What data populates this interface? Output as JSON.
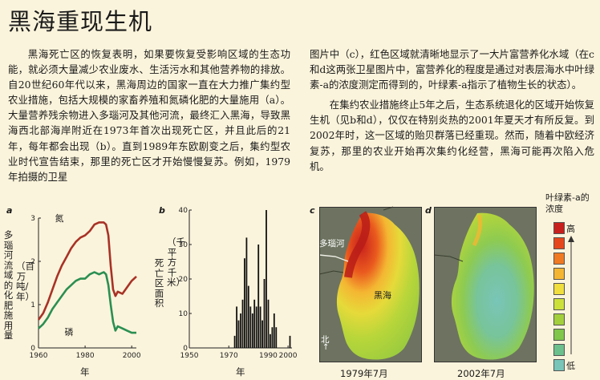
{
  "page": {
    "title": "黑海重现生机",
    "col1_p1": "黑海死亡区的恢复表明，如果要恢复受影响区域的生态功能，就必须大量减少农业废水、生活污水和其他营养物的排放。自20世纪60年代以来，黑海周边的国家一直在大力推广集约型农业措施，包括大规模的家畜养殖和氮磷化肥的大量施用（a）。大量营养残余物进入多瑙河及其他河流，最终汇入黑海，导致黑海西北部海岸附近在1973年首次出现死亡区，并且此后的21年，每年都会出现（b）。直到1989年东欧剧变之后，集约型农业时代宣告结束，那里的死亡区才开始慢慢复苏。例如，1979年拍摄的卫星",
    "col2_p1": "图片中（c），红色区域就清晰地显示了一大片富营养化水域（在c和d这两张卫星图片中，富营养化的程度是通过对表层海水中叶绿素-a的浓度测定而得到的，叶绿素-a指示了植物生长的状态）。",
    "col2_p2": "在集约农业措施终止5年之后，生态系统退化的区域开始恢复生机（见b和d），仅仅在特别炎热的2001年夏天才有所反复。到2002年时，这一区域的贻贝群落已经重现。然而，随着中欧经济复苏，那里的农业开始再次集约化经营，黑海可能再次陷入危机。"
  },
  "panel_a": {
    "label": "a",
    "ylabel": "多瑙河流域的化肥施用量",
    "yunit": "（百万吨/年）",
    "xlabel": "年",
    "series_n_label": "氮",
    "series_p_label": "磷"
  },
  "panel_b": {
    "label": "b",
    "ylabel": "死亡区面积",
    "yunit": "（千平方千米）",
    "xlabel": "年"
  },
  "panel_c": {
    "label": "c",
    "river_label": "多瑙河",
    "sea_label": "黑海",
    "north_label": "北",
    "caption": "1979年7月"
  },
  "panel_d": {
    "label": "d",
    "caption": "2002年7月"
  },
  "legend": {
    "title": "叶绿素-a的浓度",
    "high": "高",
    "low": "低",
    "colors": [
      "#c8201c",
      "#e6461c",
      "#f07a22",
      "#f4b632",
      "#f0de3c",
      "#cce03a",
      "#a3cf3c",
      "#7fc64a",
      "#6cc08c",
      "#79c5b8"
    ]
  },
  "chart_data": [
    {
      "type": "line",
      "title": "",
      "xlabel": "年",
      "ylabel": "多瑙河流域的化肥施用量（百万吨/年）",
      "xlim": [
        1960,
        2002
      ],
      "ylim": [
        0,
        3
      ],
      "xticks": [
        1960,
        1980,
        2000
      ],
      "yticks": [
        0,
        1,
        2,
        3
      ],
      "series": [
        {
          "name": "氮",
          "color": "#a83226",
          "x": [
            1960,
            1962,
            1964,
            1966,
            1968,
            1970,
            1972,
            1974,
            1976,
            1978,
            1980,
            1982,
            1984,
            1986,
            1988,
            1989,
            1990,
            1991,
            1992,
            1993,
            1994,
            1996,
            1998,
            2000,
            2002
          ],
          "y": [
            0.65,
            0.8,
            1.05,
            1.35,
            1.65,
            1.9,
            2.1,
            2.3,
            2.45,
            2.55,
            2.6,
            2.7,
            2.85,
            2.9,
            2.9,
            2.85,
            2.6,
            1.9,
            1.35,
            1.2,
            1.3,
            1.25,
            1.4,
            1.55,
            1.65
          ]
        },
        {
          "name": "磷",
          "color": "#2a8f52",
          "x": [
            1960,
            1962,
            1964,
            1966,
            1968,
            1970,
            1972,
            1974,
            1976,
            1978,
            1980,
            1982,
            1984,
            1986,
            1988,
            1989,
            1990,
            1991,
            1992,
            1993,
            1994,
            1996,
            1998,
            2000,
            2002
          ],
          "y": [
            0.45,
            0.55,
            0.7,
            0.9,
            1.05,
            1.2,
            1.35,
            1.45,
            1.55,
            1.6,
            1.6,
            1.7,
            1.75,
            1.7,
            1.75,
            1.7,
            1.45,
            1.0,
            0.6,
            0.4,
            0.5,
            0.45,
            0.4,
            0.35,
            0.35
          ]
        }
      ]
    },
    {
      "type": "bar",
      "title": "",
      "xlabel": "年",
      "ylabel": "死亡区面积（千平方千米）",
      "xlim": [
        1950,
        2002
      ],
      "ylim": [
        0,
        40
      ],
      "xticks": [
        1950,
        1970,
        1990,
        2000
      ],
      "yticks": [
        0,
        10,
        20,
        30,
        40
      ],
      "x": [
        1973,
        1974,
        1975,
        1976,
        1977,
        1978,
        1979,
        1980,
        1981,
        1982,
        1983,
        1984,
        1985,
        1986,
        1987,
        1988,
        1989,
        1990,
        1991,
        1992,
        1993,
        1994,
        2001
      ],
      "values": [
        3.5,
        12,
        8,
        10,
        14,
        26,
        32,
        18,
        12,
        10,
        14,
        12,
        30,
        12,
        8,
        20,
        40,
        14,
        4,
        6,
        10,
        6,
        3.5
      ]
    }
  ]
}
